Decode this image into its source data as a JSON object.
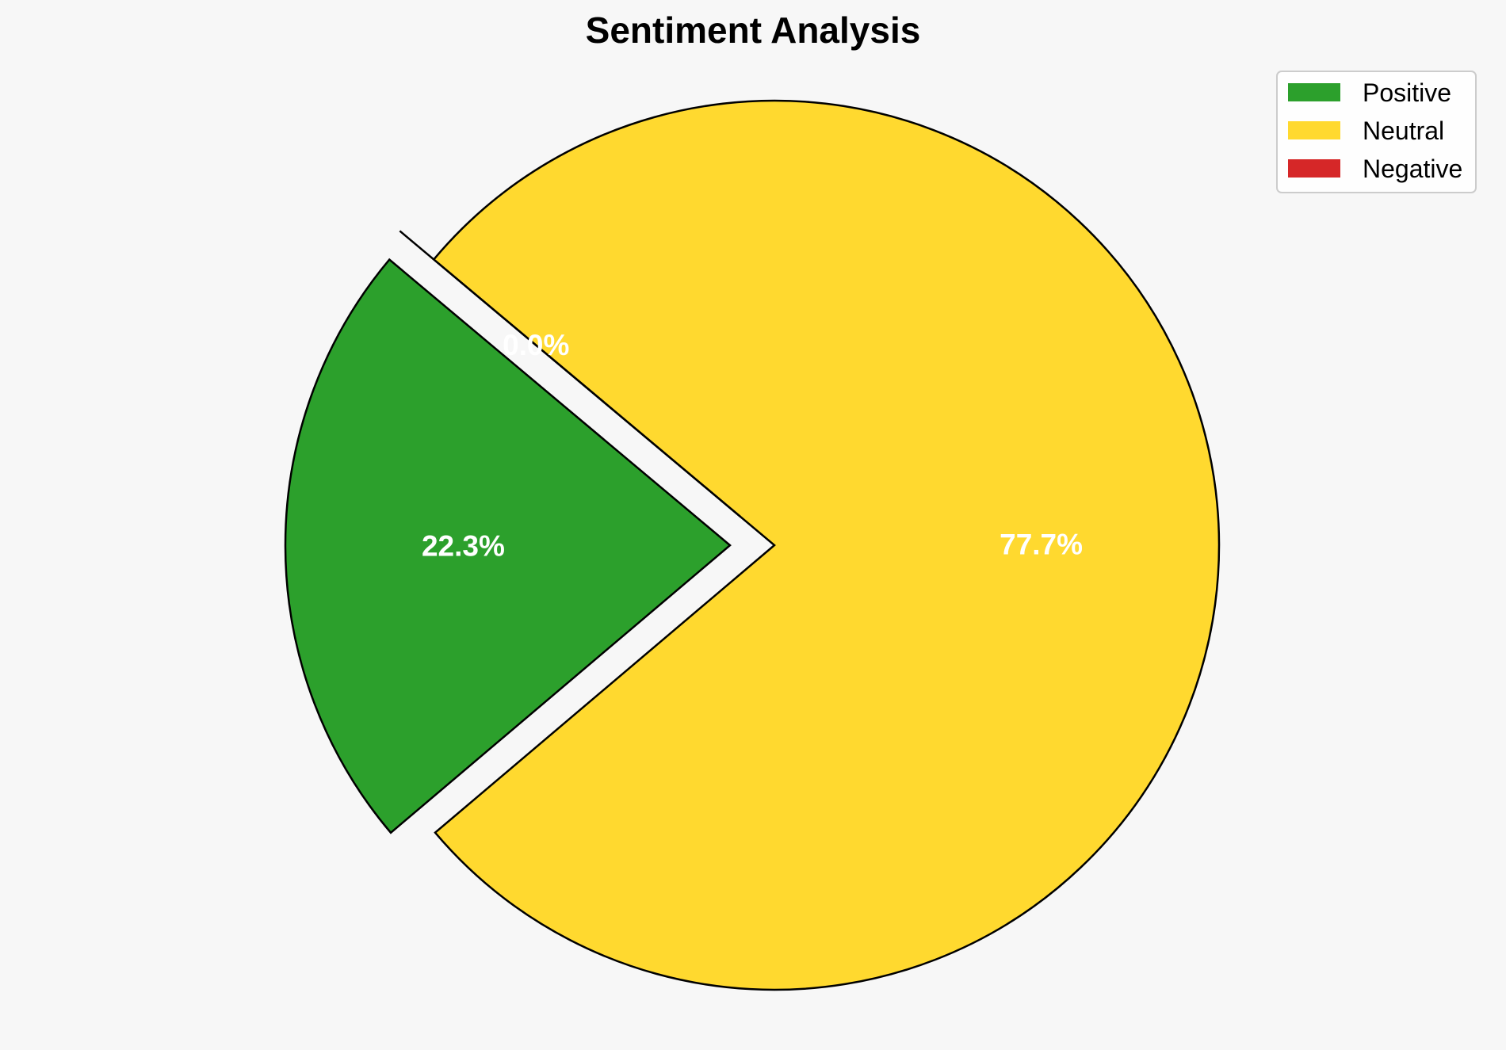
{
  "chart_data": {
    "type": "pie",
    "title": "Sentiment Analysis",
    "slices": [
      {
        "label": "Positive",
        "value": 22.3,
        "display": "22.3%",
        "color": "#2ca02c",
        "exploded": true
      },
      {
        "label": "Neutral",
        "value": 77.7,
        "display": "77.7%",
        "color": "#ffd92f",
        "exploded": false
      },
      {
        "label": "Negative",
        "value": 0.0,
        "display": "0.0%",
        "color": "#d62728",
        "exploded": true
      }
    ],
    "legend": {
      "placement": "top-right",
      "entries": [
        "Positive",
        "Neutral",
        "Negative"
      ]
    },
    "start_angle_deg": 140,
    "direction": "counterclockwise",
    "background": "#f7f7f7"
  }
}
